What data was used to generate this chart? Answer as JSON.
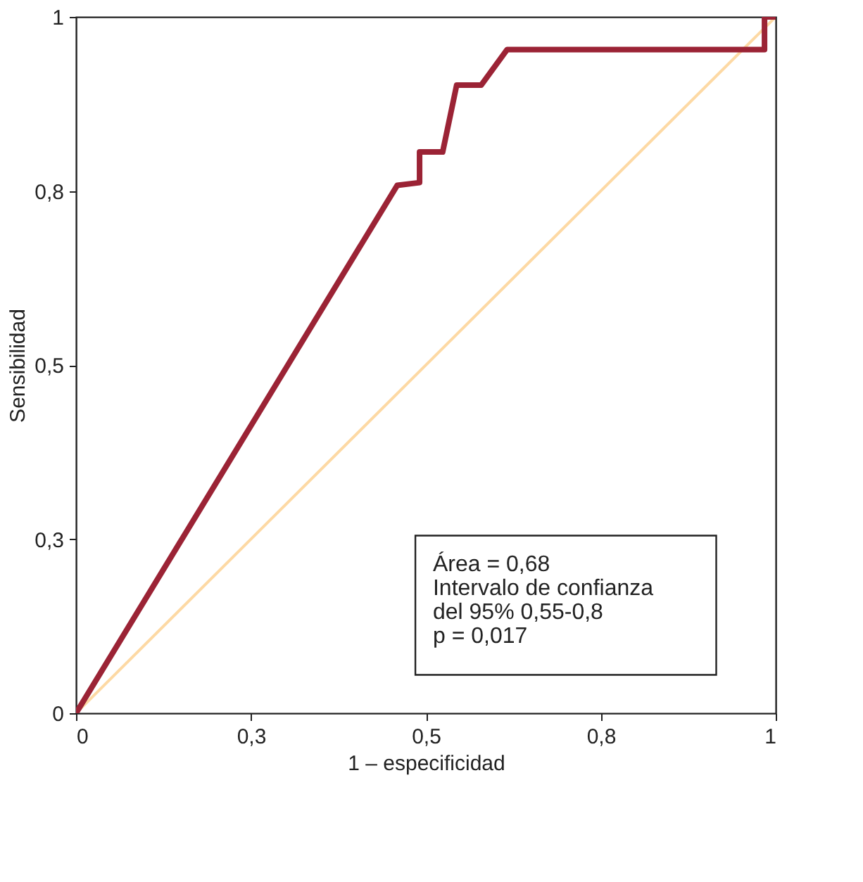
{
  "chart_data": {
    "type": "line",
    "xlabel": "1 – especificidad",
    "ylabel": "Sensibilidad",
    "xlim": [
      0,
      1
    ],
    "ylim": [
      0,
      1
    ],
    "xticks": [
      0,
      {
        "value": 0.25,
        "label": "0,3"
      },
      {
        "value": 0.5,
        "label": "0,5"
      },
      {
        "value": 0.75,
        "label": "0,8"
      },
      1
    ],
    "yticks": [
      0,
      {
        "value": 0.25,
        "label": "0,3"
      },
      {
        "value": 0.5,
        "label": "0,5"
      },
      {
        "value": 0.75,
        "label": "0,8"
      },
      1
    ],
    "grid": false,
    "marker": "none",
    "line_style": "solid",
    "series": [
      {
        "color": "#9b2335",
        "x": [
          0,
          0.459,
          0.491,
          0.491,
          0.524,
          0.544,
          0.579,
          0.616,
          0.984,
          0.984,
          1
        ],
        "values": [
          0,
          0.758,
          0.762,
          0.806,
          0.806,
          0.902,
          0.902,
          0.953,
          0.953,
          1,
          1
        ]
      },
      {
        "color": "#fdd9a4",
        "x": [
          0,
          1
        ],
        "values": [
          0,
          1
        ]
      }
    ],
    "annotations": [
      "Área = 0,68",
      "Intervalo de confianza",
      "del 95% 0,55-0,8",
      "p = 0,017"
    ]
  }
}
